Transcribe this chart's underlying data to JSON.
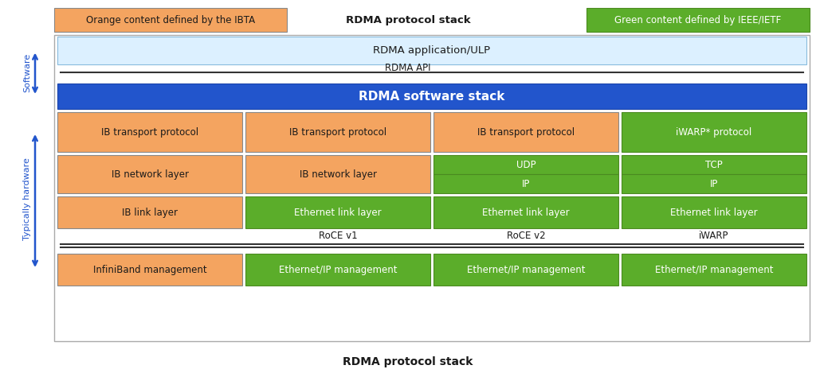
{
  "title": "RDMA protocol stack",
  "background": "#ffffff",
  "orange": "#F4A460",
  "green": "#5BAD2A",
  "blue": "#2255CC",
  "light_blue_bg": "#DCF0FF",
  "text_dark": "#1a1a1a",
  "text_white": "#ffffff",
  "legend_orange_text": "Orange content defined by the IBTA",
  "legend_title": "RDMA protocol stack",
  "legend_green_text": "Green content defined by IEEE/IETF",
  "rdma_app_label": "RDMA application/ULP",
  "rdma_api_label": "RDMA API",
  "rdma_sw_label": "RDMA software stack",
  "sw_label": "Software",
  "hw_label": "Typically hardware",
  "bottom_label": "RDMA protocol stack",
  "roce_v1": "RoCE v1",
  "roce_v2": "RoCE v2",
  "iwarp_label": "iWARP",
  "figsize": [
    10.24,
    4.69
  ],
  "dpi": 100
}
